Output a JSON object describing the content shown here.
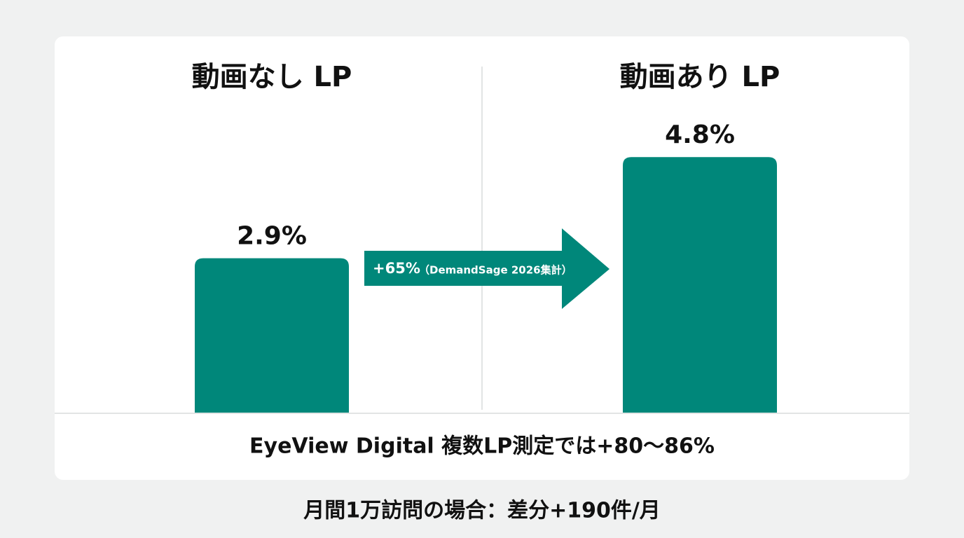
{
  "chart_data": {
    "type": "bar",
    "categories": [
      "動画なし LP",
      "動画あり LP"
    ],
    "values": [
      2.9,
      4.8
    ],
    "value_labels": [
      "2.9%",
      "4.8%"
    ],
    "color": "#00877a",
    "annotations": [
      "+65%",
      "（DemandSage 2026集計）",
      "EyeView Digital 複数LP測定では+80〜86%",
      "月間1万訪問の場合：差分+190件/月"
    ]
  }
}
